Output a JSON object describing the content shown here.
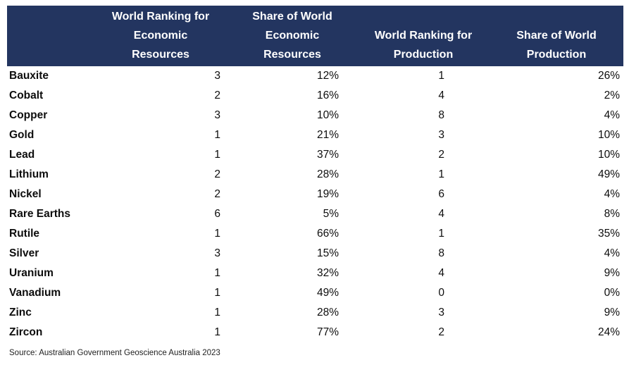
{
  "chart_data": {
    "type": "table",
    "title": "",
    "columns": [
      {
        "label": "",
        "lines": []
      },
      {
        "label": "World Ranking for Economic Resources",
        "lines": [
          "World Ranking for",
          "Economic",
          "Resources"
        ]
      },
      {
        "label": "Share of World Economic Resources",
        "lines": [
          "Share of World",
          "Economic",
          "Resources"
        ]
      },
      {
        "label": "World Ranking for Production",
        "lines": [
          "World Ranking for",
          "Production"
        ]
      },
      {
        "label": "Share of World Production",
        "lines": [
          "Share of World",
          "Production"
        ]
      }
    ],
    "rows": [
      [
        "Bauxite",
        "3",
        "12%",
        "1",
        "26%"
      ],
      [
        "Cobalt",
        "2",
        "16%",
        "4",
        "2%"
      ],
      [
        "Copper",
        "3",
        "10%",
        "8",
        "4%"
      ],
      [
        "Gold",
        "1",
        "21%",
        "3",
        "10%"
      ],
      [
        "Lead",
        "1",
        "37%",
        "2",
        "10%"
      ],
      [
        "Lithium",
        "2",
        "28%",
        "1",
        "49%"
      ],
      [
        "Nickel",
        "2",
        "19%",
        "6",
        "4%"
      ],
      [
        "Rare Earths",
        "6",
        "5%",
        "4",
        "8%"
      ],
      [
        "Rutile",
        "1",
        "66%",
        "1",
        "35%"
      ],
      [
        "Silver",
        "3",
        "15%",
        "8",
        "4%"
      ],
      [
        "Uranium",
        "1",
        "32%",
        "4",
        "9%"
      ],
      [
        "Vanadium",
        "1",
        "49%",
        "0",
        "0%"
      ],
      [
        "Zinc",
        "1",
        "28%",
        "3",
        "9%"
      ],
      [
        "Zircon",
        "1",
        "77%",
        "2",
        "24%"
      ]
    ],
    "source": "Source: Australian Government Geoscience Australia 2023"
  },
  "colors": {
    "header_bg": "#233560",
    "header_text": "#FFFFFF",
    "body_text": "#0d0d0d",
    "source_text": "#222222"
  }
}
